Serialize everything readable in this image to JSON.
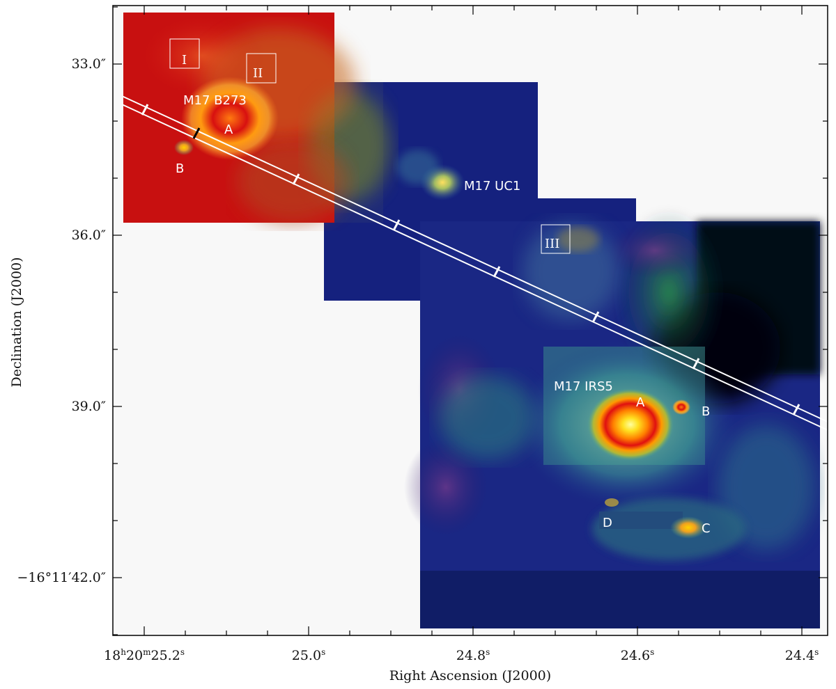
{
  "figure": {
    "x_axis": {
      "title": "Right Ascension (J2000)",
      "ticks": [
        "18h20m25.2s",
        "25.0s",
        "24.8s",
        "24.6s",
        "24.4s"
      ]
    },
    "y_axis": {
      "title": "Declination (J2000)",
      "ticks": [
        "33.0″",
        "36.0″",
        "39.0″",
        "−16°11′42.0″"
      ]
    },
    "sources": {
      "b273": {
        "name": "M17 B273",
        "a": "A",
        "b": "B"
      },
      "uc1": {
        "name": "M17 UC1"
      },
      "irs5": {
        "name": "M17 IRS5",
        "a": "A",
        "b": "B",
        "c": "C",
        "d": "D"
      }
    },
    "regions": [
      "I",
      "II",
      "III"
    ]
  }
}
